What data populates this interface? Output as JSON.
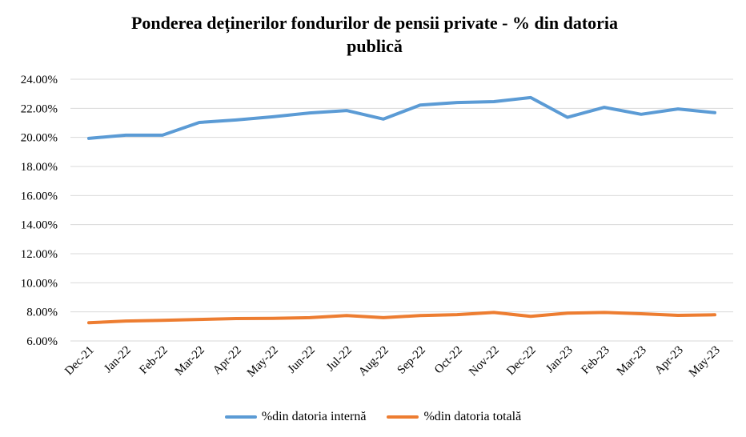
{
  "chart_data": {
    "type": "line",
    "title_line1": "Ponderea deținerilor fondurilor de pensii private - % din datoria",
    "title_line2": "publică",
    "categories": [
      "Dec-21",
      "Jan-22",
      "Feb-22",
      "Mar-22",
      "Apr-22",
      "May-22",
      "Jun-22",
      "Jul-22",
      "Aug-22",
      "Sep-22",
      "Oct-22",
      "Nov-22",
      "Dec-22",
      "Jan-23",
      "Feb-23",
      "Mar-23",
      "Apr-23",
      "May-23"
    ],
    "y_ticks": [
      "6.00%",
      "8.00%",
      "10.00%",
      "12.00%",
      "14.00%",
      "16.00%",
      "18.00%",
      "20.00%",
      "22.00%",
      "24.00%"
    ],
    "ylim": [
      6,
      24
    ],
    "grid": true,
    "legend_position": "bottom",
    "series": [
      {
        "name": "%din datoria internă",
        "color": "#5B9BD5",
        "values": [
          19.93,
          20.15,
          20.15,
          21.03,
          21.2,
          21.42,
          21.68,
          21.85,
          21.26,
          22.23,
          22.4,
          22.46,
          22.74,
          21.38,
          22.07,
          21.59,
          21.96,
          21.7
        ]
      },
      {
        "name": "%din datoria totală",
        "color": "#ED7D31",
        "values": [
          7.25,
          7.37,
          7.42,
          7.48,
          7.54,
          7.55,
          7.6,
          7.75,
          7.6,
          7.75,
          7.81,
          7.96,
          7.69,
          7.91,
          7.96,
          7.87,
          7.76,
          7.8
        ]
      }
    ]
  }
}
